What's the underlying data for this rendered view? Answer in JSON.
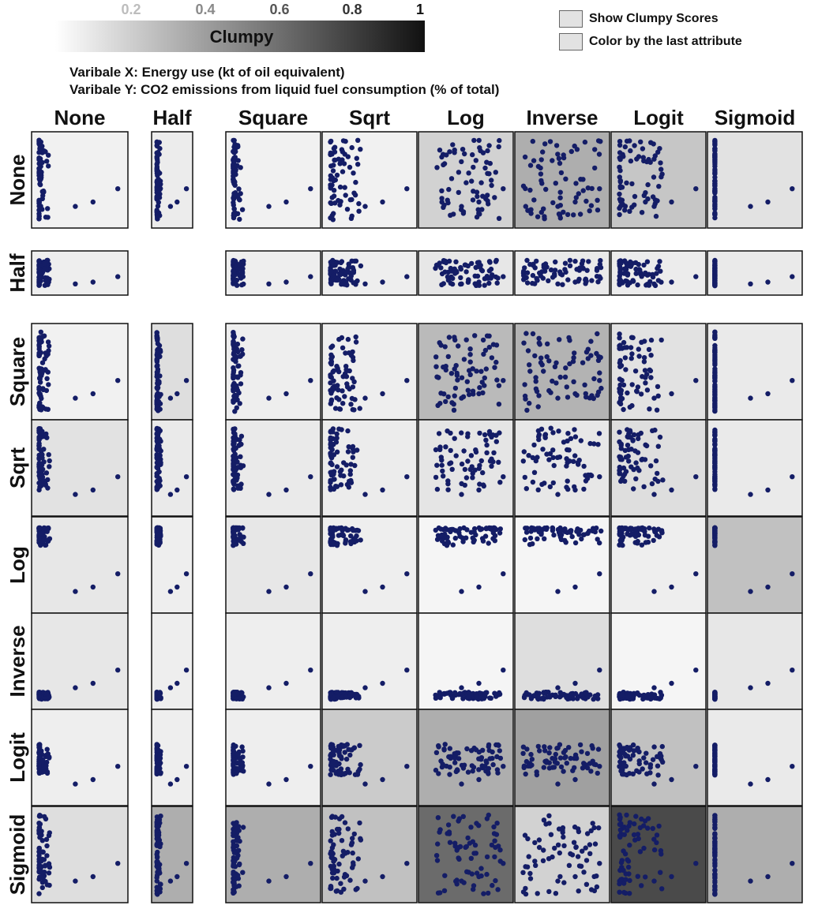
{
  "legend": {
    "ticks": [
      "0.2",
      "0.4",
      "0.6",
      "0.8",
      "1"
    ],
    "tick_values": [
      0.2,
      0.4,
      0.6,
      0.8,
      1.0
    ],
    "label": "Clumpy",
    "gradient_start": "#ffffff",
    "gradient_end": "#111111"
  },
  "controls": {
    "show_scores_label": "Show Clumpy Scores",
    "color_last_label": "Color by the last attribute"
  },
  "variables": {
    "x_label": "Varibale X: Energy use (kt of oil equivalent)",
    "y_label": "Varibale Y: CO2 emissions from liquid fuel consumption (% of total)"
  },
  "colors": {
    "point": "#141d66",
    "frame": "#111111"
  },
  "chart_data": {
    "type": "scatter",
    "columns": [
      "None",
      "Half",
      "Square",
      "Sqrt",
      "Log",
      "Inverse",
      "Logit",
      "Sigmoid"
    ],
    "rows": [
      "None",
      "Half",
      "Square",
      "Sqrt",
      "Log",
      "Inverse",
      "Logit",
      "Sigmoid"
    ],
    "clumpy_scores": [
      [
        0.02,
        0.04,
        0.02,
        0.02,
        0.15,
        0.3,
        0.2,
        0.08
      ],
      [
        0.03,
        null,
        0.03,
        0.03,
        0.06,
        0.05,
        0.04,
        0.05
      ],
      [
        0.02,
        0.1,
        0.03,
        0.03,
        0.25,
        0.28,
        0.08,
        0.05
      ],
      [
        0.08,
        0.05,
        0.05,
        0.04,
        0.07,
        0.06,
        0.1,
        0.05
      ],
      [
        0.06,
        0.03,
        0.06,
        0.03,
        0.0,
        0.0,
        0.03,
        0.22
      ],
      [
        0.06,
        0.03,
        0.03,
        0.03,
        0.0,
        0.1,
        0.0,
        0.06
      ],
      [
        0.03,
        0.03,
        0.03,
        0.18,
        0.3,
        0.36,
        0.22,
        0.05
      ],
      [
        0.1,
        0.3,
        0.3,
        0.22,
        0.58,
        0.15,
        0.72,
        0.3
      ]
    ]
  }
}
